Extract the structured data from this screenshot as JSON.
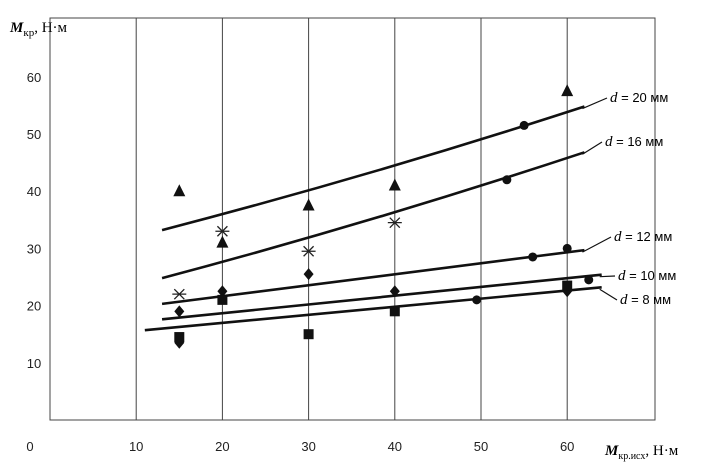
{
  "chart_data": {
    "type": "scatter",
    "title": "",
    "ylabel_main": "M",
    "ylabel_sub": "кр",
    "ylabel_unit": ", Н·м",
    "xlabel_main": "M",
    "xlabel_sub": "кр.исх",
    "xlabel_unit": ", Н·м",
    "xlim": [
      0,
      70
    ],
    "ylim": [
      0,
      70
    ],
    "x_ticks": [
      0,
      10,
      20,
      30,
      40,
      50,
      60
    ],
    "y_ticks": [
      10,
      20,
      30,
      40,
      50,
      60
    ],
    "grid": "vertical",
    "series": [
      {
        "name": "d = 20 мм",
        "label_d": "d",
        "label_rest": " = 20 мм",
        "marker": "triangle",
        "points": [
          [
            15,
            40
          ],
          [
            20,
            31
          ],
          [
            30,
            37.5
          ],
          [
            40,
            41
          ],
          [
            60,
            57.5
          ]
        ],
        "fit": {
          "x0": 13,
          "y0": 33.2,
          "x1": 62,
          "y1": 54.8
        }
      },
      {
        "name": "d = 16 мм",
        "label_d": "d",
        "label_rest": " = 16 мм",
        "marker": "star",
        "points": [
          [
            15,
            22
          ],
          [
            20,
            33
          ],
          [
            30,
            29.5
          ],
          [
            40,
            34.5
          ]
        ],
        "fit": {
          "x0": 13,
          "y0": 24.8,
          "x1": 62,
          "y1": 46.8
        }
      },
      {
        "name": "d = 12 мм",
        "label_d": "d",
        "label_rest": " = 12 мм",
        "marker": "circle",
        "points": [
          [
            55,
            51.5
          ],
          [
            53,
            42
          ],
          [
            56,
            28.5
          ],
          [
            60,
            30
          ],
          [
            49.5,
            21
          ],
          [
            62.5,
            24.5
          ],
          [
            60,
            23
          ]
        ],
        "fit": {
          "x0": 13,
          "y0": 20.3,
          "x1": 62,
          "y1": 29.7
        }
      },
      {
        "name": "d = 10 мм",
        "label_d": "d",
        "label_rest": " = 10 мм",
        "marker": "diamond",
        "points": [
          [
            15,
            19
          ],
          [
            20,
            22.5
          ],
          [
            30,
            25.5
          ],
          [
            40,
            22.5
          ],
          [
            60,
            22.5
          ],
          [
            15,
            13.5
          ]
        ],
        "fit": {
          "x0": 13,
          "y0": 17.6,
          "x1": 64,
          "y1": 25.4
        }
      },
      {
        "name": "d = 8 мм",
        "label_d": "d",
        "label_rest": " = 8 мм",
        "marker": "square",
        "points": [
          [
            15,
            14.5
          ],
          [
            20,
            21
          ],
          [
            30,
            15
          ],
          [
            40,
            19
          ],
          [
            60,
            23.5
          ]
        ],
        "fit": {
          "x0": 11,
          "y0": 15.7,
          "x1": 64,
          "y1": 23.2
        }
      }
    ]
  }
}
